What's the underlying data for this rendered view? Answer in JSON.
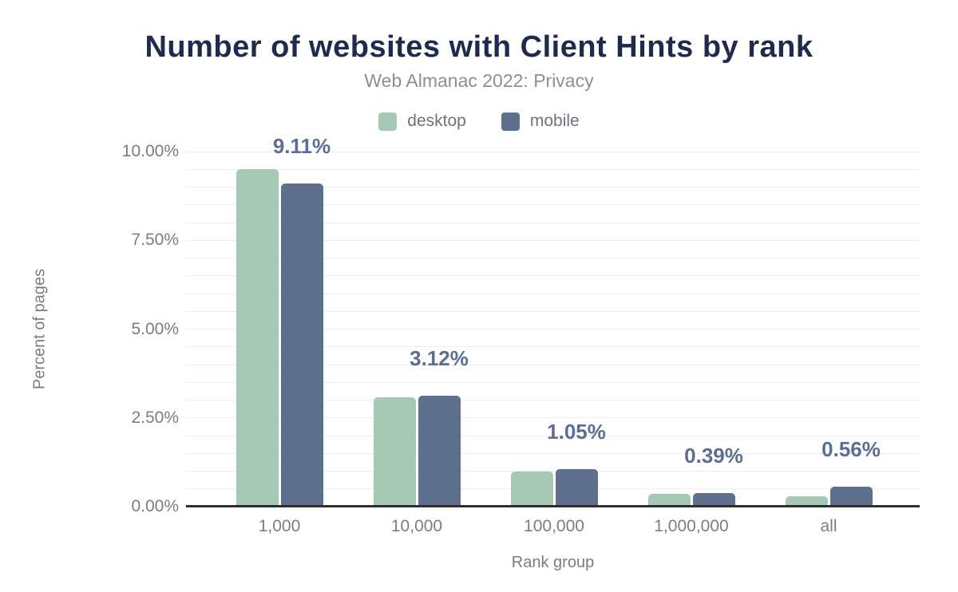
{
  "chart_data": {
    "type": "bar",
    "title": "Number of websites with Client Hints by rank",
    "subtitle": "Web Almanac 2022: Privacy",
    "xlabel": "Rank group",
    "ylabel": "Percent of pages",
    "categories": [
      "1,000",
      "10,000",
      "100,000",
      "1,000,000",
      "all"
    ],
    "series": [
      {
        "name": "desktop",
        "color": "#a6c9b5",
        "values": [
          9.5,
          3.08,
          0.98,
          0.35,
          0.3
        ]
      },
      {
        "name": "mobile",
        "color": "#5f708e",
        "values": [
          9.11,
          3.12,
          1.05,
          0.39,
          0.56
        ]
      }
    ],
    "data_labels": {
      "annotated_series": "mobile",
      "texts": [
        "9.11%",
        "3.12%",
        "1.05%",
        "0.39%",
        "0.56%"
      ],
      "color": "#5a6f93"
    },
    "yticks": [
      {
        "value": 0,
        "label": "0.00%"
      },
      {
        "value": 2.5,
        "label": "2.50%"
      },
      {
        "value": 5,
        "label": "5.00%"
      },
      {
        "value": 7.5,
        "label": "7.50%"
      },
      {
        "value": 10,
        "label": "10.00%"
      }
    ],
    "ylim": [
      0,
      10
    ],
    "grid": {
      "step": 0.5,
      "on": true,
      "color": "#ededed"
    },
    "legend_position": "top-center",
    "colors": {
      "title": "#1e2b4d",
      "subtitle": "#8b8f94",
      "axis_text": "#7a7e83",
      "axis_line": "#2e2e2e",
      "background": "#ffffff"
    }
  }
}
